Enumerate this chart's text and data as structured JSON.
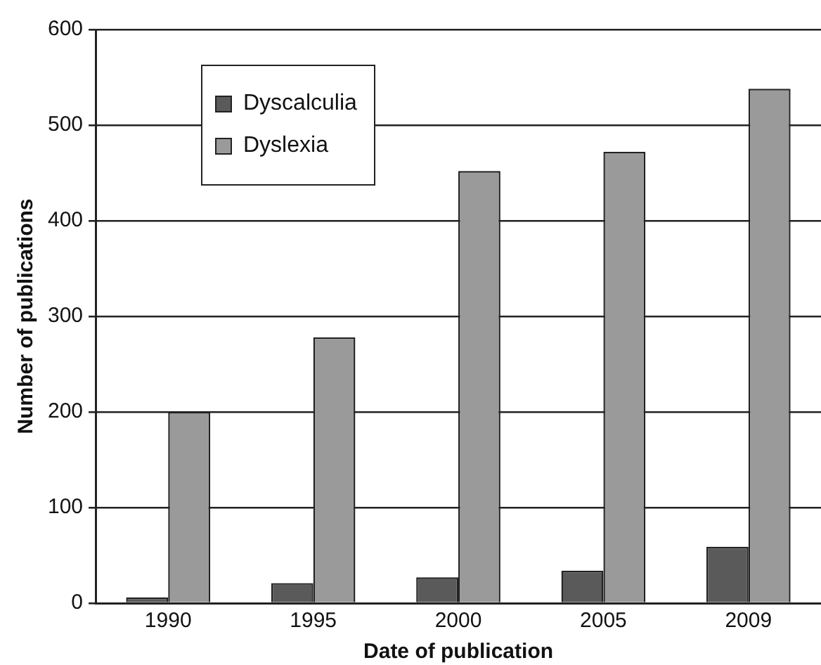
{
  "chart_data": {
    "type": "bar",
    "xlabel": "Date of publication",
    "ylabel": "Number of publications",
    "categories": [
      "1990",
      "1995",
      "2000",
      "2005",
      "2009"
    ],
    "series": [
      {
        "name": "Dyscalculia",
        "color": "#5a5a5a",
        "values": [
          6,
          21,
          27,
          34,
          59
        ]
      },
      {
        "name": "Dyslexia",
        "color": "#9a9a9a",
        "values": [
          200,
          278,
          452,
          472,
          538
        ]
      }
    ],
    "ylim": [
      0,
      600
    ],
    "yticks": [
      0,
      100,
      200,
      300,
      400,
      500,
      600
    ],
    "grid": "y",
    "legend": "top left"
  }
}
